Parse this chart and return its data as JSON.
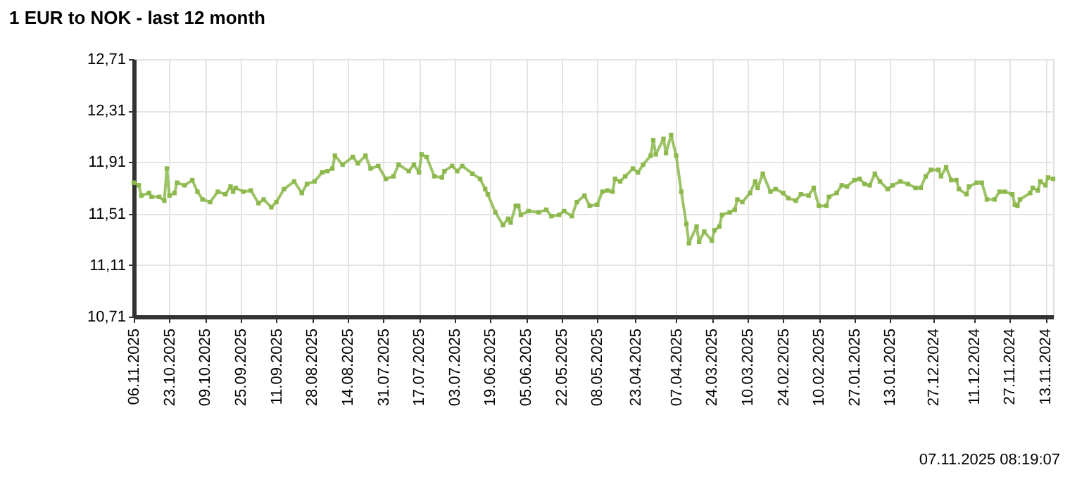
{
  "chart_data": {
    "type": "line",
    "title": "1 EUR to NOK - last 12 month",
    "annotations": [
      "07.11.2025 08:19:07"
    ],
    "x": [
      "2025-11-06",
      "2025-11-04",
      "2025-11-03",
      "2025-10-31",
      "2025-10-30",
      "2025-10-27",
      "2025-10-25",
      "2025-10-24",
      "2025-10-23",
      "2025-10-21",
      "2025-10-20",
      "2025-10-17",
      "2025-10-14",
      "2025-10-12",
      "2025-10-10",
      "2025-10-07",
      "2025-10-04",
      "2025-10-01",
      "2025-09-29",
      "2025-09-28",
      "2025-09-27",
      "2025-09-24",
      "2025-09-21",
      "2025-09-18",
      "2025-09-16",
      "2025-09-13",
      "2025-09-11",
      "2025-09-08",
      "2025-09-04",
      "2025-09-01",
      "2025-08-30",
      "2025-08-27",
      "2025-08-24",
      "2025-08-22",
      "2025-08-20",
      "2025-08-19",
      "2025-08-16",
      "2025-08-12",
      "2025-08-10",
      "2025-08-07",
      "2025-08-05",
      "2025-08-02",
      "2025-07-30",
      "2025-07-27",
      "2025-07-25",
      "2025-07-21",
      "2025-07-19",
      "2025-07-17",
      "2025-07-16",
      "2025-07-14",
      "2025-07-11",
      "2025-07-08",
      "2025-07-07",
      "2025-07-04",
      "2025-07-02",
      "2025-06-30",
      "2025-06-26",
      "2025-06-23",
      "2025-06-21",
      "2025-06-20",
      "2025-06-17",
      "2025-06-14",
      "2025-06-12",
      "2025-06-11",
      "2025-06-09",
      "2025-06-08",
      "2025-06-07",
      "2025-06-04",
      "2025-05-31",
      "2025-05-28",
      "2025-05-26",
      "2025-05-23",
      "2025-05-21",
      "2025-05-18",
      "2025-05-16",
      "2025-05-13",
      "2025-05-11",
      "2025-05-08",
      "2025-05-06",
      "2025-05-04",
      "2025-05-02",
      "2025-05-01",
      "2025-04-29",
      "2025-04-27",
      "2025-04-24",
      "2025-04-22",
      "2025-04-20",
      "2025-04-17",
      "2025-04-16",
      "2025-04-15",
      "2025-04-12",
      "2025-04-11",
      "2025-04-09",
      "2025-04-07",
      "2025-04-05",
      "2025-04-03",
      "2025-04-02",
      "2025-03-30",
      "2025-03-29",
      "2025-03-27",
      "2025-03-24",
      "2025-03-23",
      "2025-03-21",
      "2025-03-20",
      "2025-03-17",
      "2025-03-15",
      "2025-03-14",
      "2025-03-12",
      "2025-03-09",
      "2025-03-07",
      "2025-03-06",
      "2025-03-04",
      "2025-03-01",
      "2025-02-27",
      "2025-02-24",
      "2025-02-22",
      "2025-02-19",
      "2025-02-17",
      "2025-02-14",
      "2025-02-12",
      "2025-02-10",
      "2025-02-07",
      "2025-02-06",
      "2025-02-03",
      "2025-02-01",
      "2025-01-30",
      "2025-01-27",
      "2025-01-25",
      "2025-01-23",
      "2025-01-21",
      "2025-01-19",
      "2025-01-17",
      "2025-01-14",
      "2025-01-12",
      "2025-01-09",
      "2025-01-06",
      "2025-01-03",
      "2025-01-01",
      "2024-12-30",
      "2024-12-28",
      "2024-12-25",
      "2024-12-24",
      "2024-12-22",
      "2024-12-20",
      "2024-12-18",
      "2024-12-17",
      "2024-12-14",
      "2024-12-13",
      "2024-12-10",
      "2024-12-08",
      "2024-12-06",
      "2024-12-03",
      "2024-12-01",
      "2024-11-29",
      "2024-11-26",
      "2024-11-25",
      "2024-11-24",
      "2024-11-23",
      "2024-11-19",
      "2024-11-18",
      "2024-11-16",
      "2024-11-15",
      "2024-11-13",
      "2024-11-12",
      "2024-11-10"
    ],
    "series": [
      {
        "color": "#8cb84c",
        "values": [
          11.75,
          11.73,
          11.65,
          11.67,
          11.64,
          11.64,
          11.61,
          11.86,
          11.65,
          11.67,
          11.75,
          11.73,
          11.77,
          11.68,
          11.62,
          11.6,
          11.68,
          11.66,
          11.72,
          11.68,
          11.71,
          11.68,
          11.69,
          11.59,
          11.62,
          11.56,
          11.6,
          11.7,
          11.76,
          11.67,
          11.74,
          11.76,
          11.83,
          11.84,
          11.86,
          11.96,
          11.89,
          11.95,
          11.9,
          11.96,
          11.86,
          11.88,
          11.78,
          11.8,
          11.89,
          11.84,
          11.89,
          11.83,
          11.97,
          11.95,
          11.8,
          11.79,
          11.84,
          11.88,
          11.84,
          11.88,
          11.82,
          11.78,
          11.7,
          11.66,
          11.52,
          11.42,
          11.47,
          11.44,
          11.57,
          11.57,
          11.5,
          11.53,
          11.52,
          11.54,
          11.49,
          11.5,
          11.53,
          11.49,
          11.6,
          11.65,
          11.57,
          11.58,
          11.68,
          11.69,
          11.68,
          11.78,
          11.76,
          11.8,
          11.86,
          11.83,
          11.89,
          11.96,
          12.08,
          11.97,
          12.09,
          11.98,
          12.12,
          11.96,
          11.68,
          11.43,
          11.28,
          11.41,
          11.29,
          11.37,
          11.3,
          11.38,
          11.41,
          11.5,
          11.52,
          11.54,
          11.62,
          11.6,
          11.67,
          11.76,
          11.71,
          11.82,
          11.68,
          11.7,
          11.67,
          11.63,
          11.61,
          11.66,
          11.65,
          11.71,
          11.57,
          11.57,
          11.64,
          11.67,
          11.73,
          11.72,
          11.77,
          11.78,
          11.74,
          11.73,
          11.82,
          11.76,
          11.7,
          11.73,
          11.76,
          11.74,
          11.71,
          11.71,
          11.8,
          11.85,
          11.85,
          11.8,
          11.87,
          11.77,
          11.77,
          11.7,
          11.66,
          11.72,
          11.75,
          11.75,
          11.62,
          11.62,
          11.68,
          11.68,
          11.66,
          11.58,
          11.57,
          11.62,
          11.67,
          11.71,
          11.69,
          11.76,
          11.73,
          11.79,
          11.78
        ]
      }
    ],
    "xlim": [
      "2025-11-06",
      "2024-11-10"
    ],
    "xticks": [
      {
        "value": "2025-11-06",
        "label": "06.11.2025"
      },
      {
        "value": "2025-10-23",
        "label": "23.10.2025"
      },
      {
        "value": "2025-10-09",
        "label": "09.10.2025"
      },
      {
        "value": "2025-09-25",
        "label": "25.09.2025"
      },
      {
        "value": "2025-09-11",
        "label": "11.09.2025"
      },
      {
        "value": "2025-08-28",
        "label": "28.08.2025"
      },
      {
        "value": "2025-08-14",
        "label": "14.08.2025"
      },
      {
        "value": "2025-07-31",
        "label": "31.07.2025"
      },
      {
        "value": "2025-07-17",
        "label": "17.07.2025"
      },
      {
        "value": "2025-07-03",
        "label": "03.07.2025"
      },
      {
        "value": "2025-06-19",
        "label": "19.06.2025"
      },
      {
        "value": "2025-06-05",
        "label": "05.06.2025"
      },
      {
        "value": "2025-05-22",
        "label": "22.05.2025"
      },
      {
        "value": "2025-05-08",
        "label": "08.05.2025"
      },
      {
        "value": "2025-04-23",
        "label": "23.04.2025"
      },
      {
        "value": "2025-04-07",
        "label": "07.04.2025"
      },
      {
        "value": "2025-03-24",
        "label": "24.03.2025"
      },
      {
        "value": "2025-03-10",
        "label": "10.03.2025"
      },
      {
        "value": "2025-02-24",
        "label": "24.02.2025"
      },
      {
        "value": "2025-02-10",
        "label": "10.02.2025"
      },
      {
        "value": "2025-01-27",
        "label": "27.01.2025"
      },
      {
        "value": "2025-01-13",
        "label": "13.01.2025"
      },
      {
        "value": "2024-12-27",
        "label": "27.12.2024"
      },
      {
        "value": "2024-12-11",
        "label": "11.12.2024"
      },
      {
        "value": "2024-11-27",
        "label": "27.11.2024"
      },
      {
        "value": "2024-11-13",
        "label": "13.11.2024"
      }
    ],
    "ylim": [
      10.71,
      12.71
    ],
    "yticks": [
      {
        "value": 10.71,
        "label": "10,71"
      },
      {
        "value": 11.11,
        "label": "11,11"
      },
      {
        "value": 11.51,
        "label": "11,51"
      },
      {
        "value": 11.91,
        "label": "11,91"
      },
      {
        "value": 12.31,
        "label": "12,31"
      },
      {
        "value": 12.71,
        "label": "12,71"
      }
    ],
    "grid": true,
    "marker": "square",
    "line_style": "solid"
  }
}
